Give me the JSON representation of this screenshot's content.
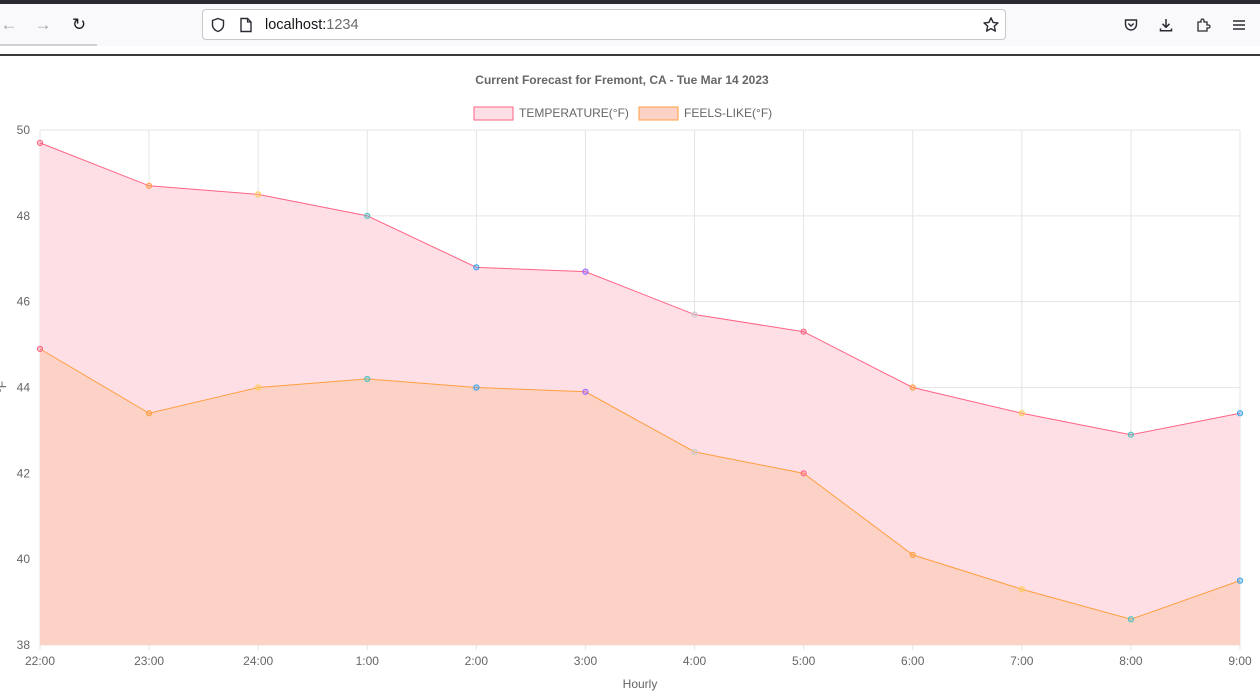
{
  "browser": {
    "url_host": "localhost:",
    "url_port": "1234"
  },
  "chart_data": {
    "type": "area",
    "title": "Current Forecast for Fremont, CA - Tue Mar 14 2023",
    "xlabel": "Hourly",
    "ylabel": "°F",
    "categories": [
      "22:00",
      "23:00",
      "24:00",
      "1:00",
      "2:00",
      "3:00",
      "4:00",
      "5:00",
      "6:00",
      "7:00",
      "8:00",
      "9:00"
    ],
    "ylim": [
      38,
      50
    ],
    "yticks": [
      38,
      40,
      42,
      44,
      46,
      48,
      50
    ],
    "grid": true,
    "legend_position": "top-center",
    "series": [
      {
        "name": "TEMPERATURE(°F)",
        "values": [
          49.7,
          48.7,
          48.5,
          48.0,
          46.8,
          46.7,
          45.7,
          45.3,
          44.0,
          43.4,
          42.9,
          43.4
        ],
        "line_color": "#ff6384",
        "fill_color": "#ffdfe6"
      },
      {
        "name": "FEELS-LIKE(°F)",
        "values": [
          44.9,
          43.4,
          44.0,
          44.2,
          44.0,
          43.9,
          42.5,
          42.0,
          40.1,
          39.3,
          38.6,
          39.5
        ],
        "line_color": "#ff9f40",
        "fill_color": "#fdd2c6"
      }
    ],
    "point_colors": [
      "#ff6384",
      "#ff9f40",
      "#ffcd56",
      "#4bc0c0",
      "#36a2eb",
      "#9966ff",
      "#c9cbcf",
      "#ff6384",
      "#ff9f40",
      "#ffcd56",
      "#4bc0c0",
      "#36a2eb"
    ]
  }
}
